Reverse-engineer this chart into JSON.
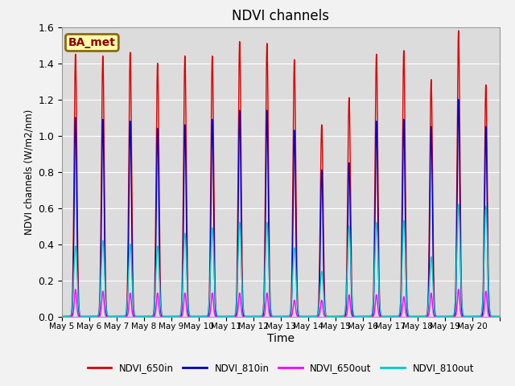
{
  "title": "NDVI channels",
  "xlabel": "Time",
  "ylabel": "NDVI channels (W/m2/nm)",
  "ylim": [
    0,
    1.6
  ],
  "background_color": "#dcdcdc",
  "fig_background": "#f2f2f2",
  "annotation_text": "BA_met",
  "lines": {
    "NDVI_650in": {
      "color": "#dd0000",
      "lw": 1.0
    },
    "NDVI_810in": {
      "color": "#0000cc",
      "lw": 1.0
    },
    "NDVI_650out": {
      "color": "#ff00ff",
      "lw": 1.0
    },
    "NDVI_810out": {
      "color": "#00cccc",
      "lw": 1.0
    }
  },
  "legend_labels": [
    "NDVI_650in",
    "NDVI_810in",
    "NDVI_650out",
    "NDVI_810out"
  ],
  "legend_colors": [
    "#dd0000",
    "#0000cc",
    "#ff00ff",
    "#00cccc"
  ],
  "xtick_labels": [
    "May 5",
    "May 6",
    "May 7",
    "May 8",
    "May 9",
    "May 10",
    "May 11",
    "May 12",
    "May 13",
    "May 14",
    "May 15",
    "May 16",
    "May 17",
    "May 18",
    "May 19",
    "May 20"
  ],
  "peak_650in": [
    1.45,
    1.44,
    1.46,
    1.4,
    1.44,
    1.44,
    1.52,
    1.51,
    1.42,
    1.06,
    1.21,
    1.45,
    1.47,
    1.31,
    1.58,
    1.28
  ],
  "peak_810in": [
    1.1,
    1.09,
    1.08,
    1.04,
    1.06,
    1.09,
    1.14,
    1.14,
    1.03,
    0.81,
    0.85,
    1.08,
    1.09,
    1.05,
    1.2,
    1.05
  ],
  "peak_650out": [
    0.15,
    0.14,
    0.13,
    0.13,
    0.13,
    0.13,
    0.13,
    0.13,
    0.09,
    0.09,
    0.12,
    0.12,
    0.11,
    0.13,
    0.15,
    0.14
  ],
  "peak_810out": [
    0.39,
    0.42,
    0.4,
    0.39,
    0.46,
    0.49,
    0.52,
    0.52,
    0.38,
    0.25,
    0.5,
    0.52,
    0.53,
    0.33,
    0.62,
    0.61
  ],
  "sigma_650in": 0.05,
  "sigma_810in": 0.045,
  "sigma_650out": 0.04,
  "sigma_810out": 0.06,
  "n_days": 16,
  "points_per_day": 500
}
